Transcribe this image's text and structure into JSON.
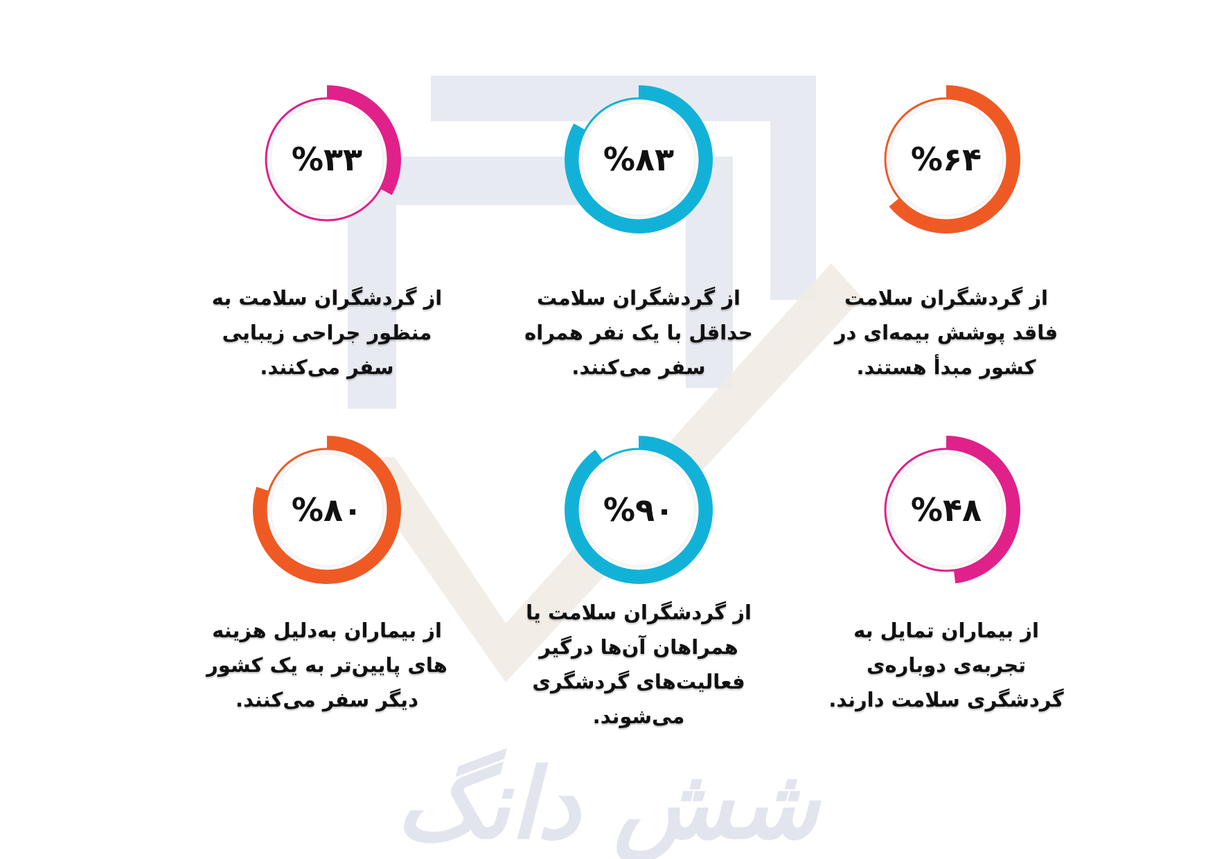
{
  "colors": {
    "pink": "#e0218a",
    "cyan": "#12b2d8",
    "orange": "#ef5a24",
    "watermark_frame": "#e8eaf2",
    "watermark_check": "#f0ebe3",
    "watermark_text": "#e2e4ee"
  },
  "watermark": {
    "text": "شش دانگ"
  },
  "stats": [
    {
      "percent": 33,
      "label": "%۳۳",
      "color": "pink",
      "lines": [
        "از گردشگران سلامت به",
        "منظور جراحی زیبایی",
        "سفر می‌کنند."
      ]
    },
    {
      "percent": 83,
      "label": "%۸۳",
      "color": "cyan",
      "lines": [
        "از گردشگران سلامت",
        "حداقل با یک نفر همراه",
        "سفر می‌کنند."
      ]
    },
    {
      "percent": 64,
      "label": "%۶۴",
      "color": "orange",
      "lines": [
        "از گردشگران سلامت",
        "فاقد پوشش بیمه‌ای در",
        "کشور مبدأ هستند."
      ]
    },
    {
      "percent": 80,
      "label": "%۸۰",
      "color": "orange",
      "lines": [
        "از بیماران به‌دلیل هزینه",
        "های پایین‌تر به یک کشور",
        "دیگر سفر می‌کنند."
      ]
    },
    {
      "percent": 90,
      "label": "%۹۰",
      "color": "cyan",
      "lines": [
        "از گردشگران سلامت یا",
        "همراهان آن‌ها درگیر",
        "فعالیت‌های گردشگری",
        "می‌شوند."
      ]
    },
    {
      "percent": 48,
      "label": "%۴۸",
      "color": "pink",
      "lines": [
        "از بیماران تمایل به",
        "تجربه‌ی دوباره‌ی",
        "گردشگری سلامت دارند."
      ]
    }
  ]
}
